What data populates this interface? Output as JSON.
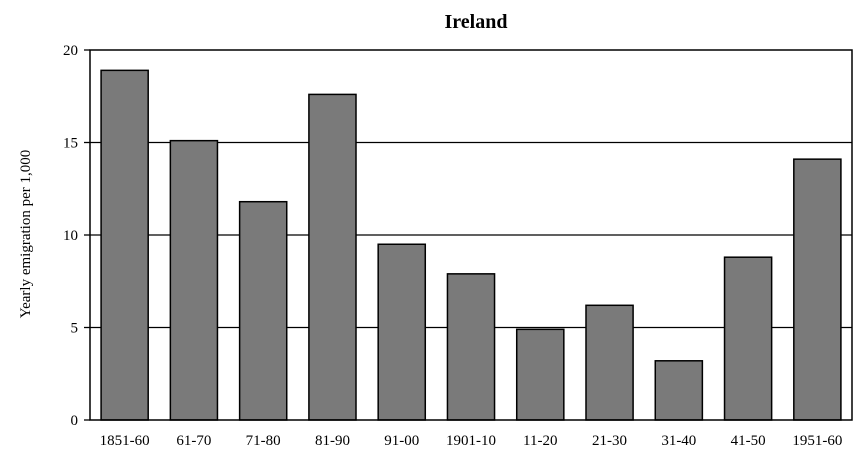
{
  "chart_data": {
    "type": "bar",
    "title": "Ireland",
    "xlabel": "",
    "ylabel": "Yearly emigration per 1,000",
    "categories": [
      "1851-60",
      "61-70",
      "71-80",
      "81-90",
      "91-00",
      "1901-10",
      "11-20",
      "21-30",
      "31-40",
      "41-50",
      "1951-60"
    ],
    "values": [
      18.9,
      15.1,
      11.8,
      17.6,
      9.5,
      7.9,
      4.9,
      6.2,
      3.2,
      8.8,
      14.1
    ],
    "ylim": [
      0,
      20
    ],
    "yticks": [
      0,
      5,
      10,
      15,
      20
    ],
    "grid": true,
    "colors": {
      "bar_fill": "#7a7a7a",
      "bar_stroke": "#000000",
      "grid": "#000000"
    }
  }
}
